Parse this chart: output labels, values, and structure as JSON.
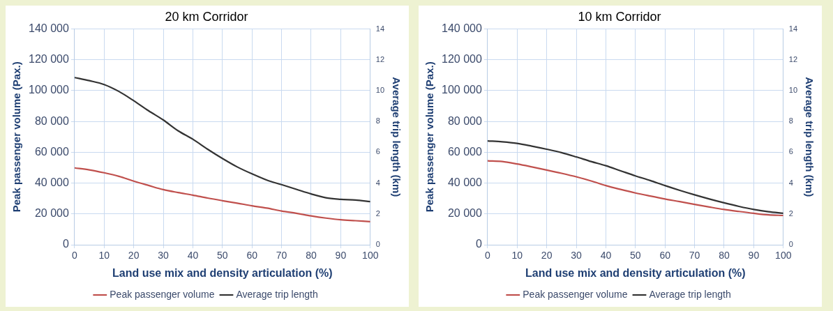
{
  "chart_data": [
    {
      "type": "line",
      "title": "20 km Corridor",
      "xlabel": "Land use mix and density articulation (%)",
      "ylabel": "Peak passenger volume (Pax.)",
      "y2label": "Average trip length (km)",
      "x": [
        0,
        5,
        10,
        15,
        20,
        25,
        30,
        35,
        40,
        45,
        50,
        55,
        60,
        65,
        70,
        75,
        80,
        85,
        90,
        95,
        100
      ],
      "series": [
        {
          "name": "Peak passenger volume",
          "color": "#c0504d",
          "axis": "y",
          "values": [
            49900,
            48600,
            46700,
            44400,
            41300,
            38500,
            35800,
            33900,
            32200,
            30300,
            28600,
            27000,
            25300,
            23800,
            21900,
            20400,
            18700,
            17300,
            16200,
            15600,
            15000
          ]
        },
        {
          "name": "Average trip length",
          "color": "#333333",
          "axis": "y2",
          "values": [
            10.85,
            10.65,
            10.4,
            9.95,
            9.35,
            8.7,
            8.1,
            7.4,
            6.85,
            6.2,
            5.6,
            5.05,
            4.6,
            4.2,
            3.9,
            3.6,
            3.3,
            3.05,
            2.95,
            2.9,
            2.8
          ]
        }
      ],
      "xlim": [
        0,
        100
      ],
      "xticks": [
        0,
        10,
        20,
        30,
        40,
        50,
        60,
        70,
        80,
        90,
        100
      ],
      "ylim": [
        0,
        140000
      ],
      "yticks": [
        0,
        {
          "value": 20000,
          "label": "20 000"
        },
        {
          "value": 40000,
          "label": "40 000"
        },
        {
          "value": 60000,
          "label": "60 000"
        },
        {
          "value": 80000,
          "label": "80 000"
        },
        {
          "value": 100000,
          "label": "100 000"
        },
        {
          "value": 120000,
          "label": "120 000"
        },
        {
          "value": 140000,
          "label": "140 000"
        }
      ],
      "y2lim": [
        0,
        14
      ],
      "y2ticks": [
        0,
        2,
        4,
        6,
        8,
        10,
        12,
        14
      ],
      "grid": true,
      "legend": "bottom"
    },
    {
      "type": "line",
      "title": "10 km Corridor",
      "xlabel": "Land use mix and density articulation (%)",
      "ylabel": "Peak passenger volume (Pax.)",
      "y2label": "Average trip length (km)",
      "x": [
        0,
        5,
        10,
        15,
        20,
        25,
        30,
        35,
        40,
        45,
        50,
        55,
        60,
        65,
        70,
        75,
        80,
        85,
        90,
        95,
        100
      ],
      "series": [
        {
          "name": "Peak passenger volume",
          "color": "#c0504d",
          "axis": "y",
          "values": [
            54500,
            54000,
            52400,
            50500,
            48500,
            46400,
            44100,
            41400,
            38400,
            35900,
            33600,
            31600,
            29700,
            28000,
            26200,
            24500,
            22900,
            21600,
            20400,
            19400,
            19000
          ]
        },
        {
          "name": "Average trip length",
          "color": "#333333",
          "axis": "y2",
          "values": [
            6.74,
            6.68,
            6.58,
            6.4,
            6.2,
            5.98,
            5.7,
            5.4,
            5.13,
            4.8,
            4.47,
            4.17,
            3.84,
            3.53,
            3.24,
            2.97,
            2.72,
            2.49,
            2.29,
            2.14,
            2.04
          ]
        }
      ],
      "xlim": [
        0,
        100
      ],
      "xticks": [
        0,
        10,
        20,
        30,
        40,
        50,
        60,
        70,
        80,
        90,
        100
      ],
      "ylim": [
        0,
        140000
      ],
      "yticks": [
        0,
        {
          "value": 20000,
          "label": "20 000"
        },
        {
          "value": 40000,
          "label": "40 000"
        },
        {
          "value": 60000,
          "label": "60 000"
        },
        {
          "value": 80000,
          "label": "80 000"
        },
        {
          "value": 100000,
          "label": "100 000"
        },
        {
          "value": 120000,
          "label": "120 000"
        },
        {
          "value": 140000,
          "label": "140 000"
        }
      ],
      "y2lim": [
        0,
        14
      ],
      "y2ticks": [
        0,
        2,
        4,
        6,
        8,
        10,
        12,
        14
      ],
      "grid": true,
      "legend": "bottom"
    }
  ]
}
